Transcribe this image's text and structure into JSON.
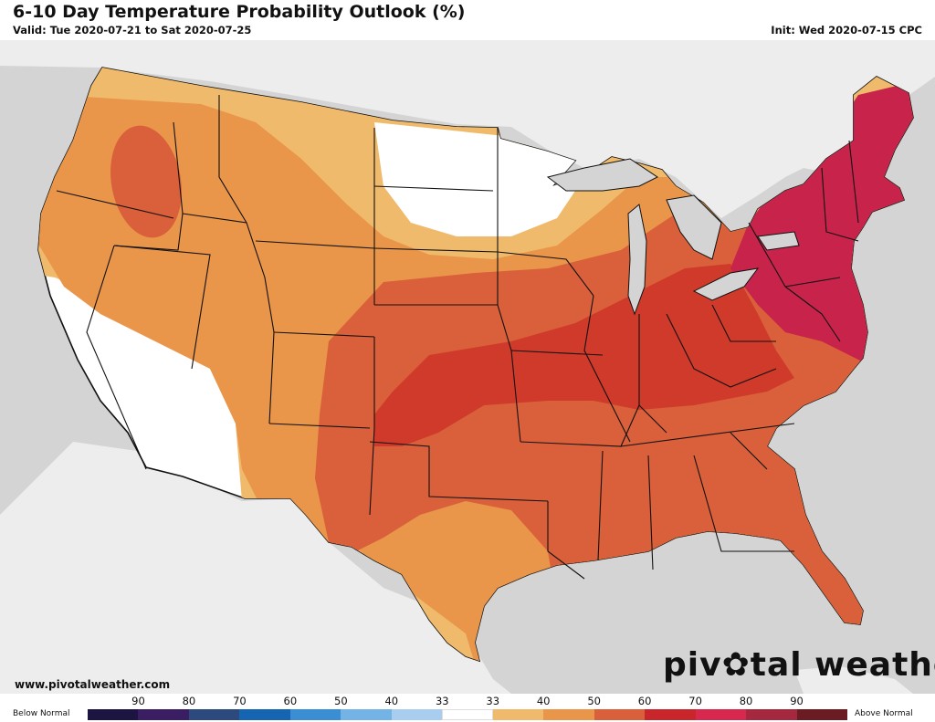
{
  "header": {
    "title": "6-10 Day Temperature Probability Outlook (%)",
    "valid": "Valid: Tue 2020-07-21 to Sat 2020-07-25",
    "init": "Init: Wed 2020-07-15 CPC"
  },
  "footer": {
    "website": "www.pivotalweather.com",
    "brand_left": "piv",
    "brand_right": "tal weather"
  },
  "legend": {
    "below_label": "Below Normal",
    "above_label": "Above Normal",
    "tick_labels": [
      "90",
      "80",
      "70",
      "60",
      "50",
      "40",
      "33",
      "33",
      "40",
      "50",
      "60",
      "70",
      "80",
      "90"
    ],
    "colors": [
      "#1c1542",
      "#3a1d63",
      "#2d4a7f",
      "#1565b3",
      "#3a8fd4",
      "#73b3e6",
      "#a9cdee",
      "#ffffff",
      "#f0ba6c",
      "#e9954a",
      "#d9603a",
      "#c8262a",
      "#d8284e",
      "#a5283f",
      "#6b1c22"
    ]
  },
  "map": {
    "region": "Contiguous United States",
    "categories": {
      "near_normal": "#ffffff",
      "above_33_40": "#f0ba6c",
      "above_40_50": "#e9954a",
      "above_50_60": "#d9603a",
      "above_60_70": "#cf3a2a",
      "above_70_80": "#c8234a"
    }
  }
}
